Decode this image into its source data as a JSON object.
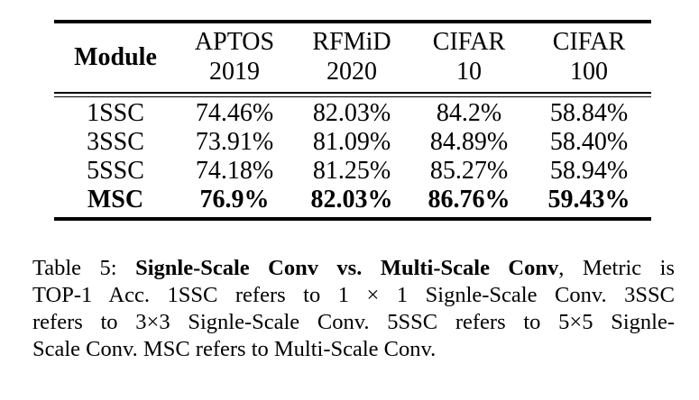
{
  "table": {
    "headers": [
      {
        "label": "Module",
        "lines": [
          "Module"
        ]
      },
      {
        "label": "APTOS 2019",
        "lines": [
          "APTOS",
          "2019"
        ]
      },
      {
        "label": "RFMiD 2020",
        "lines": [
          "RFMiD",
          "2020"
        ]
      },
      {
        "label": "CIFAR 10",
        "lines": [
          "CIFAR",
          "10"
        ]
      },
      {
        "label": "CIFAR 100",
        "lines": [
          "CIFAR",
          "100"
        ]
      }
    ],
    "rows": [
      {
        "cells": [
          "1SSC",
          "74.46%",
          "82.03%",
          "84.2%",
          "58.84%"
        ],
        "bold": false
      },
      {
        "cells": [
          "3SSC",
          "73.91%",
          "81.09%",
          "84.89%",
          "58.40%"
        ],
        "bold": false
      },
      {
        "cells": [
          "5SSC",
          "74.18%",
          "81.25%",
          "85.27%",
          "58.94%"
        ],
        "bold": false
      },
      {
        "cells": [
          "MSC",
          "76.9%",
          "82.03%",
          "86.76%",
          "59.43%"
        ],
        "bold": true
      }
    ]
  },
  "caption": {
    "prefix": "Table 5: ",
    "bold_title": "Signle-Scale Conv vs. Multi-Scale Conv",
    "line1_rest": ", Metric is",
    "line2": "TOP-1 Acc. 1SSC refers to 1 × 1 Signle-Scale Conv. 3SSC",
    "line3": "refers to 3×3 Signle-Scale Conv. 5SSC refers to 5×5 Signle-",
    "line4": "Scale Conv. MSC refers to Multi-Scale Conv."
  }
}
